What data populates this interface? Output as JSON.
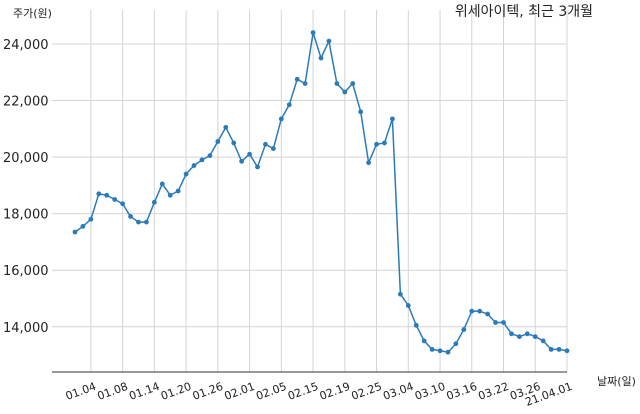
{
  "chart_data": {
    "type": "line",
    "title": "위세아이텍, 최근 3개월",
    "xlabel": "날짜(일)",
    "ylabel": "주가(원)",
    "ylim": [
      12400,
      25200
    ],
    "yticks": [
      14000,
      16000,
      18000,
      20000,
      22000,
      24000
    ],
    "ytick_labels": [
      "14,000",
      "16,000",
      "18,000",
      "20,000",
      "22,000",
      "24,000"
    ],
    "grid": true,
    "line_color": "#2b7bb9",
    "x_tick_labels": [
      "01.04",
      "01.08",
      "01.14",
      "01.20",
      "01.26",
      "02.01",
      "02.05",
      "02.15",
      "02.19",
      "02.25",
      "03.04",
      "03.10",
      "03.16",
      "03.22",
      "03.26",
      "21.04.01"
    ],
    "x_tick_positions": [
      2,
      6,
      10,
      14,
      18,
      22,
      26,
      30,
      34,
      38,
      42,
      46,
      50,
      54,
      58,
      62
    ],
    "series": [
      {
        "values": [
          17350,
          17550,
          17800,
          18700,
          18650,
          18500,
          18350,
          17900,
          17700,
          17700,
          18400,
          19050,
          18650,
          18800,
          19400,
          19700,
          19900,
          20050,
          20550,
          21050,
          20500,
          19850,
          20100,
          19650,
          20450,
          20300,
          21350,
          21850,
          22750,
          22600,
          24400,
          23500,
          24100,
          22600,
          22300,
          22600,
          21600,
          19800,
          20450,
          20500,
          21350,
          15150,
          14750,
          14050,
          13500,
          13200,
          13150,
          13100,
          13400,
          13900,
          14550,
          14550,
          14450,
          14150,
          14150,
          13750,
          13650,
          13750,
          13650,
          13500,
          13200,
          13200,
          13150
        ]
      }
    ]
  }
}
